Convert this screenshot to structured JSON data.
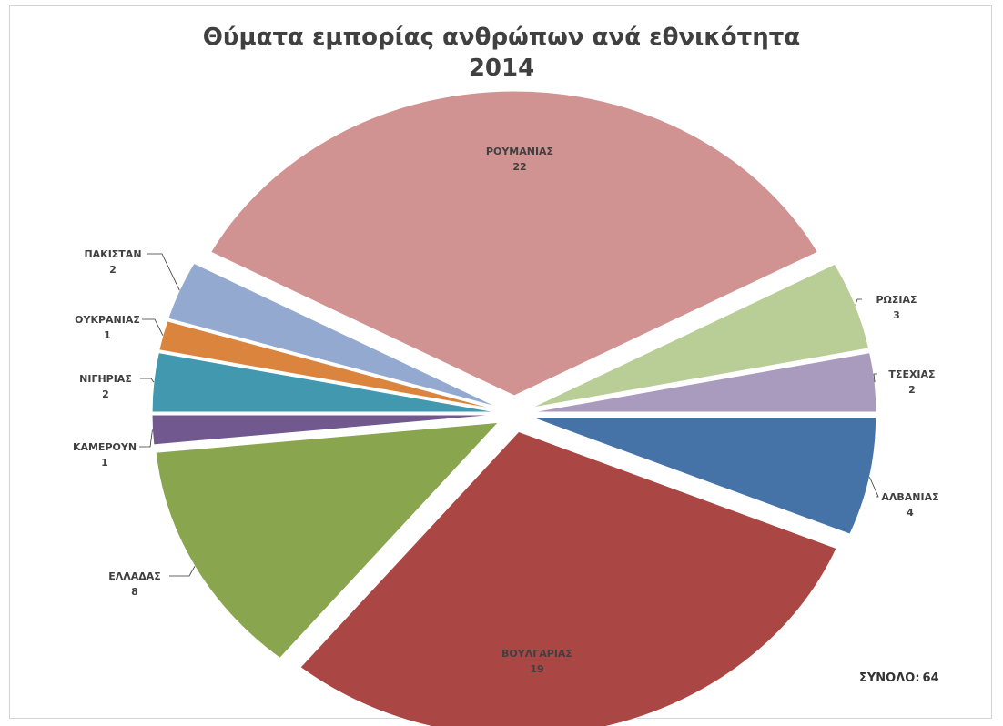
{
  "chart_data": {
    "type": "pie",
    "title": "Θύματα εμπορίας ανθρώπων ανά εθνικότητα",
    "subtitle": "2014",
    "total_label": "ΣΥΝΟΛΟ:",
    "total_value": 64,
    "slices": [
      {
        "label": "ΑΛΒΑΝΙΑΣ",
        "value": 4,
        "color": "#4573a7"
      },
      {
        "label": "ΒΟΥΛΓΑΡΙΑΣ",
        "value": 19,
        "color": "#aa4643"
      },
      {
        "label": "ΕΛΛΑΔΑΣ",
        "value": 8,
        "color": "#89a54e"
      },
      {
        "label": "ΚΑΜΕΡΟΥΝ",
        "value": 1,
        "color": "#71588f"
      },
      {
        "label": "ΝΙΓΗΡΙΑΣ",
        "value": 2,
        "color": "#4198af"
      },
      {
        "label": "ΟΥΚΡΑΝΙΑΣ",
        "value": 1,
        "color": "#db843d"
      },
      {
        "label": "ΠΑΚΙΣΤΑΝ",
        "value": 2,
        "color": "#93a9cf"
      },
      {
        "label": "ΡΟΥΜΑΝΙΑΣ",
        "value": 22,
        "color": "#d19392"
      },
      {
        "label": "ΡΩΣΙΑΣ",
        "value": 3,
        "color": "#b9cd96"
      },
      {
        "label": "ΤΣΕΧΙΑΣ",
        "value": 2,
        "color": "#a99bbd"
      }
    ]
  }
}
